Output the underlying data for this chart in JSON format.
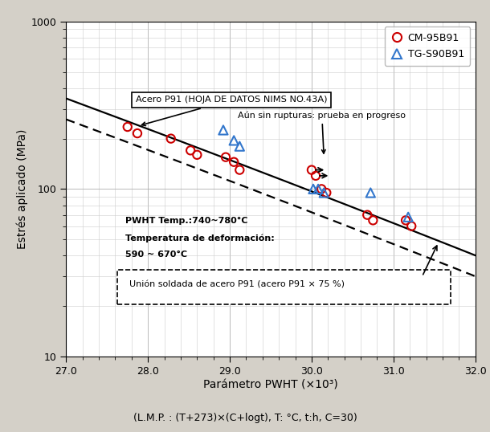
{
  "xlabel": "Parámetro PWHT (×10³)",
  "xlabel2": "(L.M.P. : (T+273̇)×(C+logt), T: °C, t:h, C=30)",
  "ylabel": "Estrés aplicado (MPa)",
  "xlim": [
    27.0,
    32.0
  ],
  "ylim_log": [
    10,
    1000
  ],
  "xticks": [
    27.0,
    28.0,
    29.0,
    30.0,
    31.0,
    32.0
  ],
  "background_color": "#d4d0c8",
  "plot_bg_color": "#ffffff",
  "cm_x": [
    27.75,
    27.87,
    28.28,
    28.52,
    28.6,
    28.95,
    29.05,
    29.12,
    30.0,
    30.05,
    30.12,
    30.18,
    30.68,
    30.75,
    31.15,
    31.22
  ],
  "cm_y": [
    235,
    215,
    200,
    170,
    160,
    155,
    145,
    130,
    130,
    120,
    100,
    95,
    70,
    65,
    65,
    60
  ],
  "cm_arrow_idx": [
    8,
    9
  ],
  "tg_x": [
    28.92,
    29.05,
    29.12,
    30.02,
    30.08,
    30.15,
    30.72,
    31.18
  ],
  "tg_y": [
    225,
    195,
    180,
    100,
    100,
    95,
    95,
    68
  ],
  "cm_color": "#cc0000",
  "tg_color": "#3377cc",
  "legend_cm": "CM-95B91",
  "legend_tg": "TG-S90B91",
  "annotation_box": "Acero P91 (HOJA DE DATOS NIMS NO.43A)",
  "annotation_progress": "Aún sin rupturas: prueba en progreso",
  "annotation_pwht_line1": "PWHT Temp.:740~780°C",
  "annotation_pwht_line2": "Temperatura de deformación:",
  "annotation_pwht_line3": "590 ~ 670°C",
  "annotation_weld": "Unión soldada de acero P91 (acero P91 × 75 %)"
}
